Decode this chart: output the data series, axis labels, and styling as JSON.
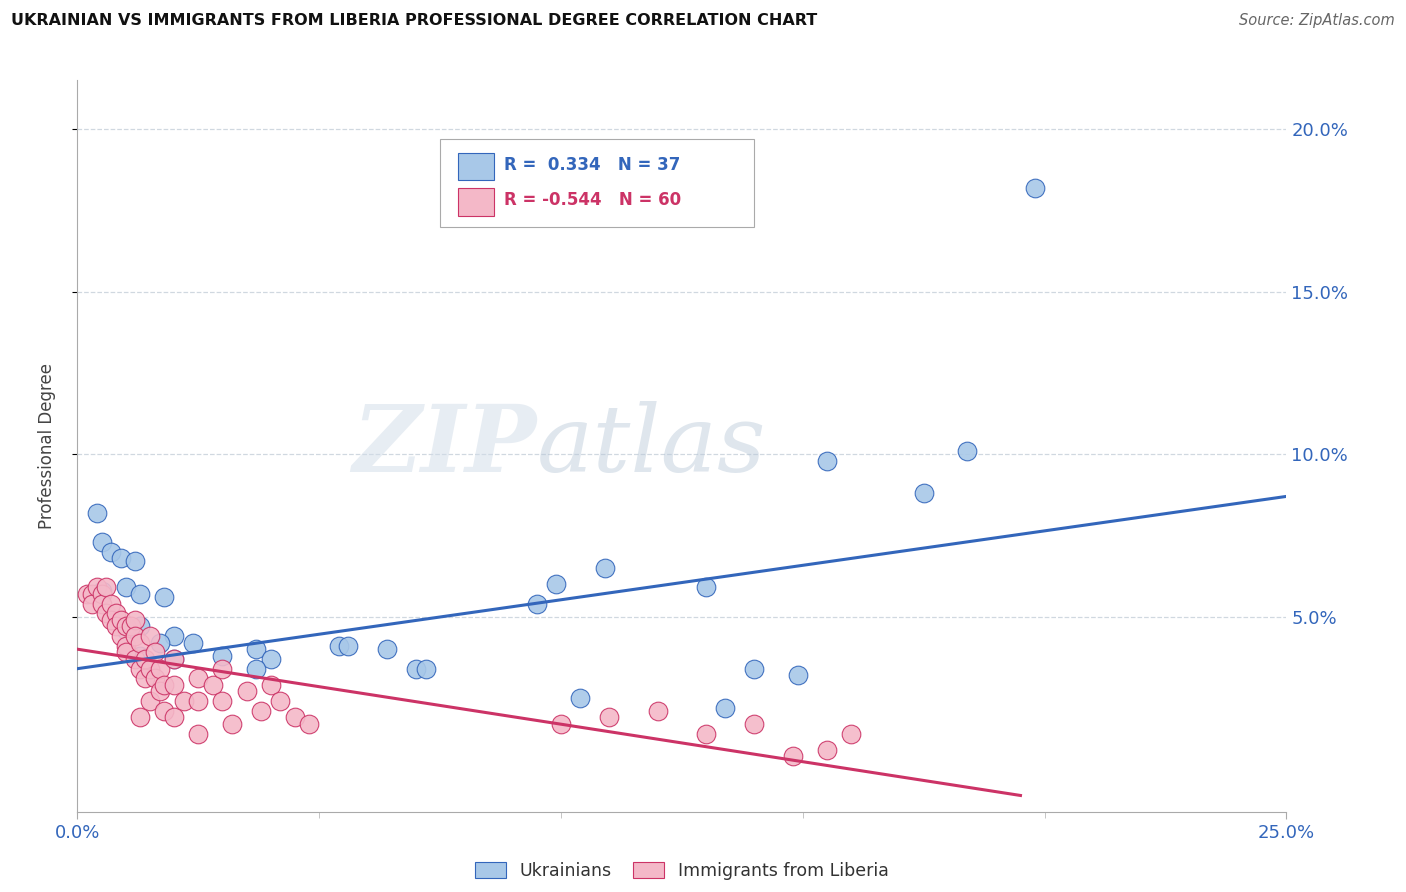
{
  "title": "UKRAINIAN VS IMMIGRANTS FROM LIBERIA PROFESSIONAL DEGREE CORRELATION CHART",
  "source": "Source: ZipAtlas.com",
  "ylabel": "Professional Degree",
  "xlim": [
    0.0,
    0.25
  ],
  "ylim": [
    -0.01,
    0.215
  ],
  "ytick_vals": [
    0.05,
    0.1,
    0.15,
    0.2
  ],
  "xtick_minor": [
    0.05,
    0.1,
    0.15,
    0.2
  ],
  "blue_scatter": [
    [
      0.004,
      0.082
    ],
    [
      0.005,
      0.073
    ],
    [
      0.007,
      0.07
    ],
    [
      0.009,
      0.068
    ],
    [
      0.012,
      0.067
    ],
    [
      0.005,
      0.058
    ],
    [
      0.01,
      0.059
    ],
    [
      0.013,
      0.057
    ],
    [
      0.018,
      0.056
    ],
    [
      0.013,
      0.047
    ],
    [
      0.01,
      0.046
    ],
    [
      0.02,
      0.044
    ],
    [
      0.017,
      0.042
    ],
    [
      0.024,
      0.042
    ],
    [
      0.013,
      0.038
    ],
    [
      0.02,
      0.037
    ],
    [
      0.03,
      0.038
    ],
    [
      0.037,
      0.04
    ],
    [
      0.04,
      0.037
    ],
    [
      0.037,
      0.034
    ],
    [
      0.054,
      0.041
    ],
    [
      0.056,
      0.041
    ],
    [
      0.064,
      0.04
    ],
    [
      0.07,
      0.034
    ],
    [
      0.072,
      0.034
    ],
    [
      0.095,
      0.054
    ],
    [
      0.099,
      0.06
    ],
    [
      0.104,
      0.025
    ],
    [
      0.109,
      0.065
    ],
    [
      0.13,
      0.059
    ],
    [
      0.134,
      0.022
    ],
    [
      0.14,
      0.034
    ],
    [
      0.149,
      0.032
    ],
    [
      0.155,
      0.098
    ],
    [
      0.175,
      0.088
    ],
    [
      0.184,
      0.101
    ],
    [
      0.198,
      0.182
    ]
  ],
  "pink_scatter": [
    [
      0.002,
      0.057
    ],
    [
      0.003,
      0.057
    ],
    [
      0.003,
      0.054
    ],
    [
      0.004,
      0.059
    ],
    [
      0.005,
      0.057
    ],
    [
      0.005,
      0.054
    ],
    [
      0.006,
      0.059
    ],
    [
      0.006,
      0.051
    ],
    [
      0.007,
      0.054
    ],
    [
      0.007,
      0.049
    ],
    [
      0.008,
      0.051
    ],
    [
      0.008,
      0.047
    ],
    [
      0.009,
      0.049
    ],
    [
      0.009,
      0.044
    ],
    [
      0.01,
      0.047
    ],
    [
      0.01,
      0.041
    ],
    [
      0.01,
      0.039
    ],
    [
      0.011,
      0.047
    ],
    [
      0.012,
      0.049
    ],
    [
      0.012,
      0.044
    ],
    [
      0.012,
      0.037
    ],
    [
      0.013,
      0.042
    ],
    [
      0.013,
      0.034
    ],
    [
      0.013,
      0.019
    ],
    [
      0.014,
      0.037
    ],
    [
      0.014,
      0.031
    ],
    [
      0.015,
      0.044
    ],
    [
      0.015,
      0.034
    ],
    [
      0.015,
      0.024
    ],
    [
      0.016,
      0.039
    ],
    [
      0.016,
      0.031
    ],
    [
      0.017,
      0.034
    ],
    [
      0.017,
      0.027
    ],
    [
      0.018,
      0.029
    ],
    [
      0.018,
      0.021
    ],
    [
      0.02,
      0.037
    ],
    [
      0.02,
      0.029
    ],
    [
      0.02,
      0.019
    ],
    [
      0.022,
      0.024
    ],
    [
      0.025,
      0.031
    ],
    [
      0.025,
      0.024
    ],
    [
      0.025,
      0.014
    ],
    [
      0.028,
      0.029
    ],
    [
      0.03,
      0.034
    ],
    [
      0.03,
      0.024
    ],
    [
      0.032,
      0.017
    ],
    [
      0.035,
      0.027
    ],
    [
      0.038,
      0.021
    ],
    [
      0.04,
      0.029
    ],
    [
      0.042,
      0.024
    ],
    [
      0.045,
      0.019
    ],
    [
      0.048,
      0.017
    ],
    [
      0.1,
      0.017
    ],
    [
      0.11,
      0.019
    ],
    [
      0.12,
      0.021
    ],
    [
      0.13,
      0.014
    ],
    [
      0.14,
      0.017
    ],
    [
      0.148,
      0.007
    ],
    [
      0.155,
      0.009
    ],
    [
      0.16,
      0.014
    ]
  ],
  "blue_line": [
    [
      0.0,
      0.034
    ],
    [
      0.25,
      0.087
    ]
  ],
  "pink_line": [
    [
      0.0,
      0.04
    ],
    [
      0.195,
      -0.005
    ]
  ],
  "blue_color": "#a8c8e8",
  "pink_color": "#f4b8c8",
  "blue_line_color": "#3366bb",
  "pink_line_color": "#cc3366",
  "watermark_zip": "ZIP",
  "watermark_atlas": "atlas",
  "background_color": "#ffffff",
  "grid_color": "#d0d8e0",
  "legend_R_blue": "R =  0.334",
  "legend_N_blue": "N = 37",
  "legend_R_pink": "R = -0.544",
  "legend_N_pink": "N = 60",
  "label_ukrainians": "Ukrainians",
  "label_liberia": "Immigrants from Liberia"
}
